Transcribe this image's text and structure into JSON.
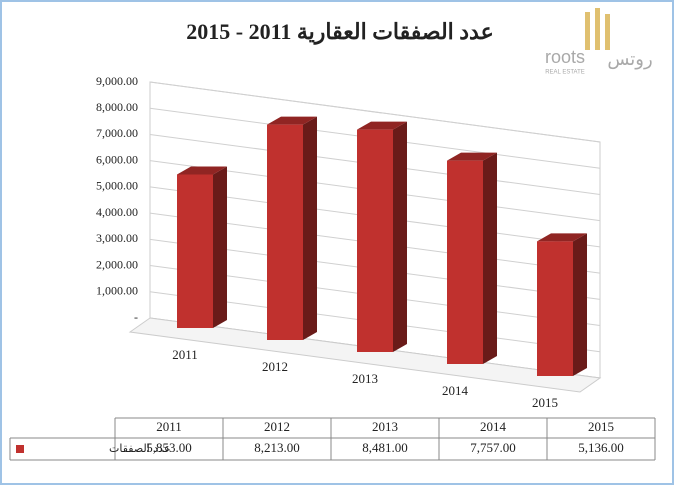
{
  "logo": {
    "latin": "roots",
    "tagline": "REAL ESTATE",
    "arabic": "روتس"
  },
  "chart_data": {
    "type": "bar",
    "title": "عدد الصفقات العقارية 2011 - 2015",
    "categories": [
      "2011",
      "2012",
      "2013",
      "2014",
      "2015"
    ],
    "series": [
      {
        "name": "عدد الصفقات",
        "color": "#c0312e",
        "values": [
          5853,
          8213,
          8481,
          7757,
          5136
        ],
        "value_labels": [
          "5,853.00",
          "8,213.00",
          "8,481.00",
          "7,757.00",
          "5,136.00"
        ]
      }
    ],
    "ylim": [
      0,
      9000
    ],
    "yticks": [
      {
        "value": 0,
        "label": "-"
      },
      {
        "value": 1000,
        "label": "1,000.00"
      },
      {
        "value": 2000,
        "label": "2,000.00"
      },
      {
        "value": 3000,
        "label": "3,000.00"
      },
      {
        "value": 4000,
        "label": "4,000.00"
      },
      {
        "value": 5000,
        "label": "5,000.00"
      },
      {
        "value": 6000,
        "label": "6,000.00"
      },
      {
        "value": 7000,
        "label": "7,000.00"
      },
      {
        "value": 8000,
        "label": "8,000.00"
      },
      {
        "value": 9000,
        "label": "9,000.00"
      }
    ],
    "grid": true,
    "legend": "table"
  }
}
